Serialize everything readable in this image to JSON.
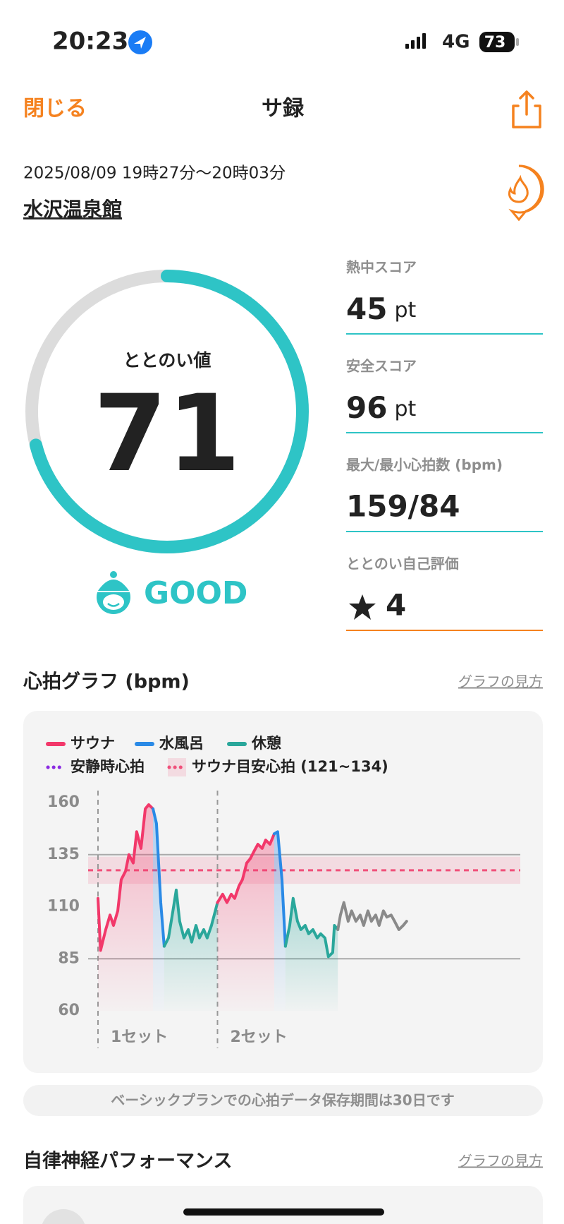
{
  "status_bar": {
    "time": "20:23",
    "network": "4G",
    "battery": "73"
  },
  "nav": {
    "close": "閉じる",
    "title": "サ録"
  },
  "session": {
    "datetime": "2025/08/09 19時27分〜20時03分",
    "place": "水沢温泉館"
  },
  "gauge": {
    "label": "ととのい値",
    "value": 71,
    "range": [
      0,
      100
    ],
    "rating": "GOOD",
    "color": "#2ec4c6"
  },
  "metrics": [
    {
      "label": "熱中スコア",
      "value": 45,
      "unit": "pt"
    },
    {
      "label": "安全スコア",
      "value": 96,
      "unit": "pt"
    },
    {
      "label": "最大/最小心拍数 (bpm)",
      "value": "159/84"
    },
    {
      "label": "ととのい自己評価",
      "value": 4
    }
  ],
  "chart_data": {
    "type": "line",
    "title": "心拍グラフ (bpm)",
    "help": "グラフの見方",
    "xlim": [
      0,
      36
    ],
    "ylim": [
      60,
      160
    ],
    "yticks": [
      60,
      85,
      110,
      135,
      160
    ],
    "hlines": [
      85,
      135
    ],
    "resting": {
      "name": "安静時心拍",
      "color": "#8b2be2"
    },
    "target": {
      "name": "サウナ目安心拍 (121~134)",
      "range": [
        121,
        134
      ],
      "color": "#f0507a"
    },
    "sets": [
      {
        "label": "1セット",
        "x": 0
      },
      {
        "label": "2セット",
        "x": 13.9
      }
    ],
    "series": [
      {
        "name": "サウナ",
        "color": "#f2386a",
        "x": [
          0,
          0.3,
          0.9,
          1.4,
          1.8,
          2.3,
          2.7,
          3.2,
          3.6,
          4.1,
          4.5,
          5,
          5.5,
          5.9,
          6.4
        ],
        "values": [
          114,
          89,
          99,
          106,
          101,
          108,
          123,
          127,
          135,
          131,
          146,
          138,
          157,
          159,
          157
        ]
      },
      {
        "name": "水風呂",
        "color": "#2a8ae6",
        "x": [
          6.4,
          6.8,
          7.3,
          7.7
        ],
        "values": [
          157,
          150,
          112,
          91
        ]
      },
      {
        "name": "休憩",
        "color": "#2aa79b",
        "x": [
          7.7,
          8.2,
          8.6,
          9.1,
          9.5,
          10,
          10.5,
          10.9,
          11.4,
          11.8,
          12.3,
          12.7,
          13.2,
          13.9
        ],
        "values": [
          91,
          95,
          105,
          118,
          103,
          95,
          99,
          93,
          101,
          95,
          99,
          95,
          101,
          112
        ]
      },
      {
        "name": "サウナ",
        "color": "#f2386a",
        "x": [
          13.9,
          14.5,
          15,
          15.5,
          15.9,
          16.4,
          16.8,
          17.3,
          17.7,
          18.2,
          18.6,
          19.1,
          19.5,
          20,
          20.5
        ],
        "values": [
          112,
          116,
          112,
          116,
          114,
          120,
          123,
          131,
          133,
          137,
          140,
          138,
          142,
          140,
          145
        ]
      },
      {
        "name": "水風呂",
        "color": "#2a8ae6",
        "x": [
          20.5,
          20.9,
          21.4,
          21.8
        ],
        "values": [
          145,
          146,
          123,
          91
        ]
      },
      {
        "name": "休憩",
        "color": "#2aa79b",
        "x": [
          21.8,
          22.3,
          22.7,
          23.2,
          23.6,
          24.1,
          24.5,
          25,
          25.5,
          25.9,
          26.4,
          26.8,
          27.3,
          27.5,
          27.9
        ],
        "values": [
          91,
          101,
          114,
          103,
          99,
          101,
          97,
          99,
          95,
          97,
          95,
          86,
          88,
          101,
          99
        ]
      },
      {
        "color": "#8a8a8a",
        "x": [
          27.9,
          28.2,
          28.6,
          29.1,
          29.5,
          30,
          30.5,
          30.9,
          31.4,
          31.8,
          32.3,
          32.7,
          33.2,
          33.6,
          34.1,
          34.5,
          35,
          35.5,
          35.9
        ],
        "values": [
          99,
          106,
          112,
          103,
          108,
          103,
          106,
          101,
          108,
          103,
          106,
          101,
          108,
          105,
          106,
          103,
          99,
          101,
          103
        ]
      }
    ]
  },
  "notice": "ベーシックプランでの心拍データ保存期間は30日です",
  "section2": {
    "title": "自律神経パフォーマンス",
    "help": "グラフの見方"
  }
}
